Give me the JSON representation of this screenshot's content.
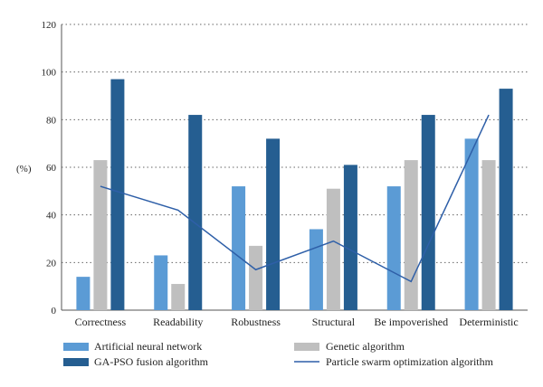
{
  "chart_data": {
    "type": "bar",
    "ylabel": "(%)",
    "ylim": [
      0,
      120
    ],
    "yticks": [
      0,
      20,
      40,
      60,
      80,
      100,
      120
    ],
    "grid": "horizontal-dotted",
    "categories": [
      "Correctness",
      "Readability",
      "Robustness",
      "Structural",
      "Be impoverished",
      "Deterministic"
    ],
    "series": [
      {
        "name": "Artificial neural network",
        "type": "bar",
        "color": "#5b9bd5",
        "values": [
          14,
          23,
          52,
          34,
          52,
          72
        ]
      },
      {
        "name": "Genetic algorithm",
        "type": "bar",
        "color": "#bfbfbf",
        "values": [
          63,
          11,
          27,
          51,
          63,
          63
        ]
      },
      {
        "name": "GA-PSO fusion algorithm",
        "type": "bar",
        "color": "#255e91",
        "values": [
          97,
          82,
          72,
          61,
          82,
          93
        ]
      },
      {
        "name": "Particle swarm optimization algorithm",
        "type": "line",
        "color": "#2e5fa8",
        "values": [
          52,
          42,
          17,
          29,
          12,
          82
        ]
      }
    ],
    "legend": {
      "placement": "bottom",
      "entries": [
        {
          "label": "Artificial neural network",
          "color": "#5b9bd5",
          "kind": "bar"
        },
        {
          "label": "Genetic algorithm",
          "color": "#bfbfbf",
          "kind": "bar"
        },
        {
          "label": "GA-PSO fusion algorithm",
          "color": "#255e91",
          "kind": "bar"
        },
        {
          "label": "Particle swarm optimization algorithm",
          "color": "#2e5fa8",
          "kind": "line"
        }
      ]
    }
  }
}
